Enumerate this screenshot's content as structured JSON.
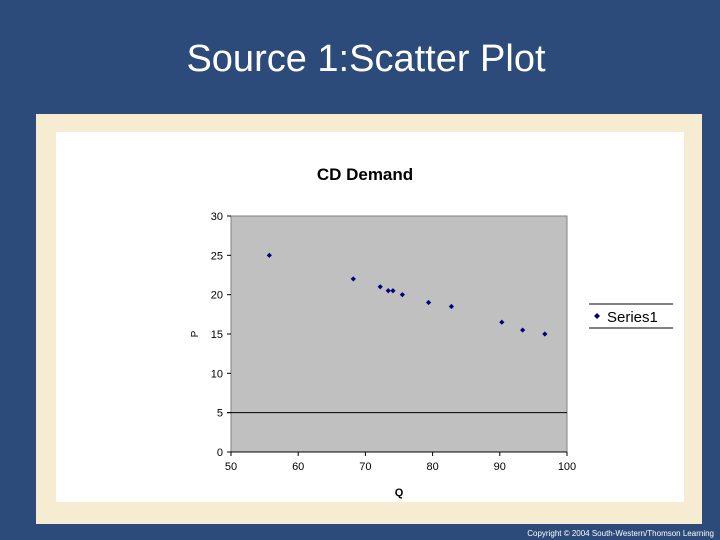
{
  "slide": {
    "title": "Source 1:Scatter Plot",
    "copyright": "Copyright © 2004 South-Western/Thomson Learning"
  },
  "colors": {
    "background": "#2c4a7a",
    "frame": "#f6ecd2",
    "plot_area": "#c0c0c0",
    "marker": "#000080"
  },
  "chart_data": {
    "type": "scatter",
    "title": "CD Demand",
    "xlabel": "Q",
    "ylabel": "P",
    "xlim": [
      50,
      100
    ],
    "ylim": [
      0,
      30
    ],
    "xticks": [
      "50",
      "60",
      "70",
      "80",
      "90",
      "100"
    ],
    "yticks": [
      "0",
      "5",
      "10",
      "15",
      "20",
      "25",
      "30"
    ],
    "grid": false,
    "legend": "right",
    "series": [
      {
        "name": "Series1",
        "marker": "diamond",
        "points": [
          {
            "x": 55.7,
            "y": 25
          },
          {
            "x": 68.2,
            "y": 22
          },
          {
            "x": 72.2,
            "y": 21
          },
          {
            "x": 73.4,
            "y": 20.5
          },
          {
            "x": 74.1,
            "y": 20.5
          },
          {
            "x": 75.5,
            "y": 20
          },
          {
            "x": 79.4,
            "y": 19
          },
          {
            "x": 82.8,
            "y": 18.5
          },
          {
            "x": 90.3,
            "y": 16.5
          },
          {
            "x": 93.4,
            "y": 15.5
          },
          {
            "x": 96.7,
            "y": 15
          }
        ]
      }
    ]
  }
}
